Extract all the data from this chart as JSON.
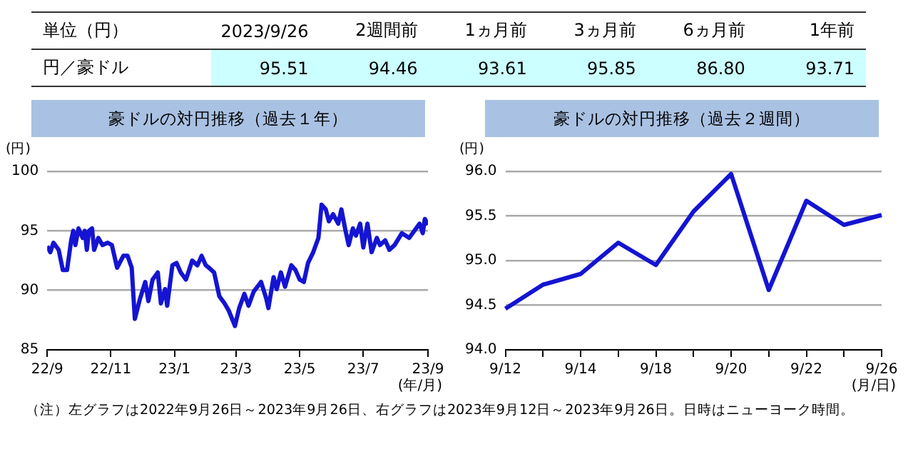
{
  "chart_data": [
    {
      "type": "other",
      "title": "単位（円）",
      "ylabel": "円／豪ドル",
      "categories": [
        "2023/9/26",
        "2週間前",
        "1ヵ月前",
        "3ヵ月前",
        "6ヵ月前",
        "1年前"
      ],
      "value_labels": [
        "95.51",
        "94.46",
        "93.61",
        "95.85",
        "86.80",
        "93.71"
      ]
    },
    {
      "type": "line",
      "title": "豪ドルの対円推移（過去１年）",
      "ylabel": "(円)",
      "xlabel": "(年/月)",
      "grid": "y",
      "legend": false,
      "marker": "none",
      "line_style": "solid",
      "xlim": [
        "2022-09-26",
        "2023-09-26"
      ],
      "xticks": [
        {
          "value": "2022-09-26",
          "label": "22/9"
        },
        {
          "value": "2022-11-26",
          "label": "22/11"
        },
        {
          "value": "2023-01-26",
          "label": "23/1"
        },
        {
          "value": "2023-03-26",
          "label": "23/3"
        },
        {
          "value": "2023-05-26",
          "label": "23/5"
        },
        {
          "value": "2023-07-26",
          "label": "23/7"
        },
        {
          "value": "2023-09-26",
          "label": "23/9"
        }
      ],
      "ylim": [
        85,
        100
      ],
      "yticks": [
        85,
        90,
        95,
        100
      ],
      "x": [
        "2022-09-26",
        "2022-09-29",
        "2022-10-02",
        "2022-10-07",
        "2022-10-11",
        "2022-10-15",
        "2022-10-19",
        "2022-10-21",
        "2022-10-23",
        "2022-10-26",
        "2022-10-30",
        "2022-11-01",
        "2022-11-03",
        "2022-11-05",
        "2022-11-08",
        "2022-11-10",
        "2022-11-14",
        "2022-11-18",
        "2022-11-23",
        "2022-11-27",
        "2022-12-02",
        "2022-12-08",
        "2022-12-12",
        "2022-12-16",
        "2022-12-19",
        "2022-12-24",
        "2022-12-29",
        "2023-01-01",
        "2023-01-05",
        "2023-01-10",
        "2023-01-13",
        "2023-01-17",
        "2023-01-19",
        "2023-01-24",
        "2023-01-28",
        "2023-02-01",
        "2023-02-06",
        "2023-02-12",
        "2023-02-17",
        "2023-02-21",
        "2023-02-25",
        "2023-02-28",
        "2023-03-05",
        "2023-03-10",
        "2023-03-15",
        "2023-03-19",
        "2023-03-25",
        "2023-03-29",
        "2023-04-03",
        "2023-04-07",
        "2023-04-12",
        "2023-04-19",
        "2023-04-24",
        "2023-04-26",
        "2023-05-01",
        "2023-05-04",
        "2023-05-08",
        "2023-05-12",
        "2023-05-18",
        "2023-05-22",
        "2023-05-26",
        "2023-05-30",
        "2023-06-03",
        "2023-06-08",
        "2023-06-13",
        "2023-06-16",
        "2023-06-20",
        "2023-06-23",
        "2023-06-27",
        "2023-07-02",
        "2023-07-05",
        "2023-07-09",
        "2023-07-12",
        "2023-07-16",
        "2023-07-19",
        "2023-07-23",
        "2023-07-26",
        "2023-07-30",
        "2023-08-03",
        "2023-08-08",
        "2023-08-11",
        "2023-08-16",
        "2023-08-20",
        "2023-08-25",
        "2023-09-01",
        "2023-09-08",
        "2023-09-13",
        "2023-09-18",
        "2023-09-21",
        "2023-09-23",
        "2023-09-26"
      ],
      "series": [
        {
          "color": "#1414d2",
          "values": [
            93.7,
            93.2,
            94.0,
            93.4,
            91.7,
            91.7,
            94.2,
            95.0,
            93.8,
            95.2,
            94.4,
            95.0,
            93.4,
            95.0,
            95.2,
            93.4,
            94.4,
            93.8,
            94.0,
            93.8,
            91.9,
            92.9,
            92.9,
            91.9,
            87.6,
            89.3,
            90.7,
            89.1,
            90.9,
            91.5,
            88.9,
            90.1,
            88.7,
            92.1,
            92.3,
            91.5,
            90.9,
            92.5,
            92.1,
            92.9,
            92.1,
            91.9,
            91.5,
            89.5,
            88.9,
            88.3,
            87.0,
            88.5,
            89.7,
            88.7,
            89.9,
            90.7,
            89.3,
            88.5,
            91.1,
            90.1,
            91.5,
            90.3,
            92.1,
            91.7,
            90.9,
            90.7,
            92.3,
            93.2,
            94.4,
            97.2,
            96.8,
            95.8,
            96.4,
            95.6,
            96.8,
            95.0,
            93.8,
            95.2,
            94.6,
            95.6,
            93.6,
            95.6,
            93.2,
            94.4,
            93.8,
            94.2,
            93.4,
            93.8,
            94.8,
            94.4,
            95.0,
            95.6,
            94.8,
            96.0,
            95.5
          ]
        }
      ],
      "annotations": [
        "（注）左グラフは2022年9月26日～2023年9月26日、右グラフは2023年9月12日～2023年9月26日。日時はニューヨーク時間。"
      ]
    },
    {
      "type": "line",
      "title": "豪ドルの対円推移（過去２週間）",
      "ylabel": "(円)",
      "xlabel": "(月/日)",
      "grid": "y",
      "legend": false,
      "marker": "none",
      "line_style": "solid",
      "categories": [
        "9/12",
        null,
        "9/14",
        null,
        "9/18",
        null,
        "9/20",
        null,
        "9/22",
        null,
        "9/26"
      ],
      "ylim": [
        94,
        96
      ],
      "yticks": [
        {
          "value": 94,
          "label": "94.0"
        },
        {
          "value": 94.5,
          "label": "94.5"
        },
        {
          "value": 95,
          "label": "95.0"
        },
        {
          "value": 95.5,
          "label": "95.5"
        },
        {
          "value": 96,
          "label": "96.0"
        }
      ],
      "series": [
        {
          "color": "#1414d2",
          "values": [
            94.46,
            94.73,
            94.85,
            95.2,
            94.95,
            95.55,
            95.97,
            94.67,
            95.67,
            95.4,
            95.51
          ]
        }
      ]
    }
  ]
}
